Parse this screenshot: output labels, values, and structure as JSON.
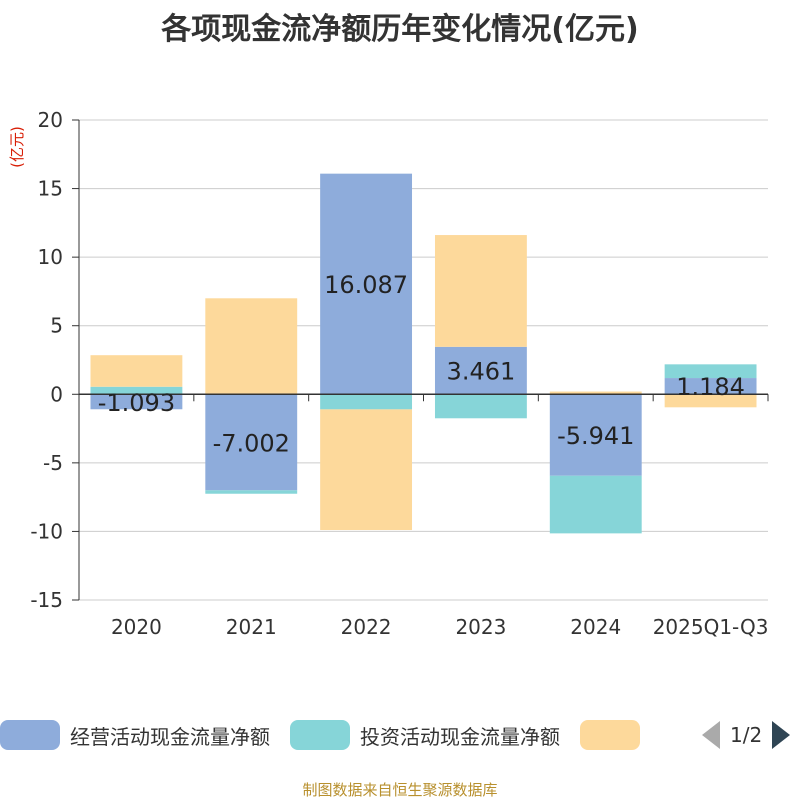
{
  "chart_data": {
    "type": "bar",
    "stacked": true,
    "title": "各项现金流净额历年变化情况(亿元)",
    "ylabel": "(亿元)",
    "ylim": [
      -15,
      20
    ],
    "yticks": [
      20,
      15,
      10,
      5,
      0,
      -5,
      -10,
      -15
    ],
    "categories": [
      "2020",
      "2021",
      "2022",
      "2023",
      "2024",
      "2025Q1-Q3"
    ],
    "series": [
      {
        "name": "经营活动现金流量净额",
        "color": "#8eacdb",
        "values": [
          -1.093,
          -7.002,
          16.087,
          3.461,
          -5.941,
          1.184
        ],
        "labels": [
          "-1.093",
          "-7.002",
          "16.087",
          "3.461",
          "-5.941",
          "1.184"
        ]
      },
      {
        "name": "投资活动现金流量净额",
        "color": "#86d5d8",
        "values": [
          0.55,
          -0.25,
          -1.1,
          -1.75,
          -4.2,
          1.0
        ]
      },
      {
        "name": "",
        "color": "#fdd99b",
        "values": [
          2.3,
          7.0,
          -8.8,
          8.15,
          0.2,
          -0.95
        ]
      }
    ],
    "legend_position": "bottom"
  },
  "legend": {
    "page_text": "1/2"
  },
  "source": "制图数据来自恒生聚源数据库"
}
